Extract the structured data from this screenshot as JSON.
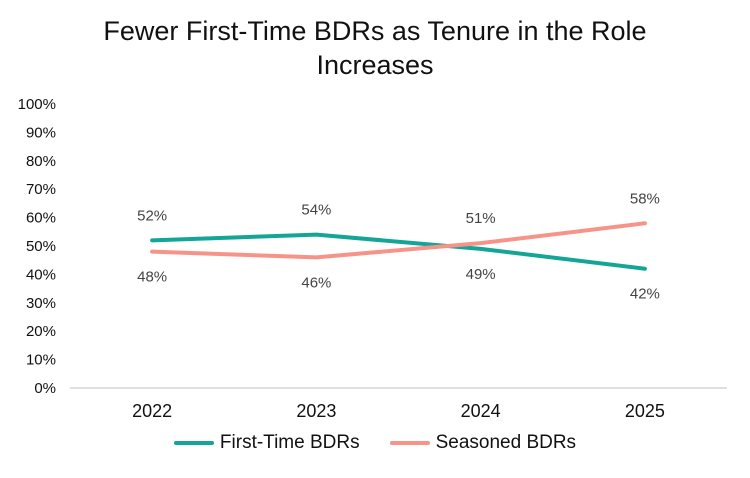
{
  "colors": {
    "first_time": "#13a596",
    "seasoned": "#f7948a",
    "axis": "#bfbfbf",
    "text": "#111111",
    "label": "#444444"
  },
  "chart_data": {
    "type": "line",
    "title": "Fewer First-Time BDRs as Tenure in the Role Increases",
    "categories": [
      "2022",
      "2023",
      "2024",
      "2025"
    ],
    "ylim": [
      0,
      100
    ],
    "y_ticks": [
      "0%",
      "10%",
      "20%",
      "30%",
      "40%",
      "50%",
      "60%",
      "70%",
      "80%",
      "90%",
      "100%"
    ],
    "grid": false,
    "legend_position": "bottom",
    "series": [
      {
        "name": "First-Time BDRs",
        "values": [
          52,
          54,
          49,
          42
        ],
        "labels": [
          "52%",
          "54%",
          "49%",
          "42%"
        ]
      },
      {
        "name": "Seasoned BDRs",
        "values": [
          48,
          46,
          51,
          58
        ],
        "labels": [
          "48%",
          "46%",
          "51%",
          "58%"
        ]
      }
    ]
  }
}
